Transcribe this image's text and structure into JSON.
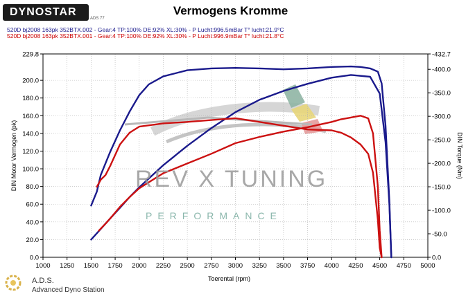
{
  "header": {
    "logo_text": "DYNOSTAR",
    "logo_sub": "ADS 77",
    "title": "Vermogens Kromme"
  },
  "runs": {
    "blue": "520D bj2008 163pk 352BTX.002 - Gear:4 TP:100% DE:92% XL:30%   - P Lucht:996.5mBar T° lucht:21.9°C",
    "red": "520D bj2008 163pk 352BTX.001 - Gear:4 TP:100% DE:92% XL:30%   - P Lucht:996.9mBar T° lucht:21.8°C"
  },
  "watermark": {
    "main": "REV X TUNING",
    "sub": "PERFORMANCE"
  },
  "footer": {
    "brand": "A.D.S.",
    "subtitle": "Advanced Dyno Station"
  },
  "colors": {
    "blue": "#1a1a8c",
    "red": "#cc1111",
    "grid": "#b0b0b0"
  },
  "chart_data": {
    "type": "line",
    "title": "Vermogens Kromme",
    "xlabel": "Toerental (rpm)",
    "ylabel": "DIN Motor Vermogen (pk)",
    "y2label": "DIN Torque (Nm)",
    "xlim": [
      1000,
      5000
    ],
    "ylim": [
      0.0,
      229.8
    ],
    "y2lim": [
      0.0,
      -432.7
    ],
    "x_ticks": [
      "1000",
      "1250",
      "1500",
      "1750",
      "2000",
      "2250",
      "2500",
      "2750",
      "3000",
      "3250",
      "3500",
      "3750",
      "4000",
      "4250",
      "4500",
      "4750",
      "5000"
    ],
    "y_ticks": [
      "0.0",
      "20.0",
      "40.0",
      "60.0",
      "80.0",
      "100.0",
      "120.0",
      "140.0",
      "160.0",
      "180.0",
      "200.0",
      "229.8"
    ],
    "y2_ticks": [
      "0.0",
      "-50.0",
      "-100.0",
      "-150.0",
      "-200.0",
      "-250.0",
      "-300.0",
      "-350.0",
      "-400.0",
      "-432.7"
    ],
    "grid": true,
    "series": [
      {
        "axis": "right",
        "color": "blue",
        "x": [
          1500,
          1560,
          1600,
          1700,
          1800,
          1900,
          2000,
          2100,
          2250,
          2500,
          2750,
          3000,
          3250,
          3500,
          3750,
          4000,
          4200,
          4300,
          4400,
          4480,
          4520,
          4560,
          4600,
          4620
        ],
        "y": [
          110,
          140,
          175,
          225,
          270,
          310,
          345,
          368,
          385,
          398,
          402,
          403,
          402,
          400,
          402,
          405,
          406,
          405,
          402,
          395,
          370,
          280,
          120,
          0
        ]
      },
      {
        "axis": "left",
        "color": "blue",
        "x": [
          1500,
          1600,
          1700,
          1800,
          1900,
          2000,
          2250,
          2500,
          2750,
          3000,
          3250,
          3500,
          3750,
          4000,
          4200,
          4400,
          4500,
          4560,
          4600,
          4620
        ],
        "y": [
          20,
          32,
          44,
          56,
          68,
          79,
          104,
          126,
          146,
          164,
          178,
          188,
          196,
          203,
          206,
          204,
          185,
          130,
          60,
          0
        ]
      },
      {
        "axis": "right",
        "color": "red",
        "x": [
          1560,
          1600,
          1650,
          1700,
          1800,
          1900,
          2000,
          2250,
          2500,
          2750,
          3000,
          3250,
          3500,
          3750,
          4000,
          4100,
          4200,
          4300,
          4380,
          4430,
          4480,
          4500,
          4520
        ],
        "y": [
          150,
          165,
          175,
          195,
          240,
          265,
          278,
          285,
          288,
          292,
          296,
          288,
          280,
          272,
          270,
          265,
          255,
          240,
          220,
          180,
          80,
          20,
          0
        ]
      },
      {
        "axis": "left",
        "color": "red",
        "x": [
          1580,
          1650,
          1700,
          1800,
          1900,
          2000,
          2250,
          2500,
          2750,
          3000,
          3250,
          3500,
          3750,
          4000,
          4100,
          4200,
          4300,
          4380,
          4430,
          4480,
          4500,
          4520
        ],
        "y": [
          30,
          38,
          44,
          57,
          68,
          78,
          95,
          106,
          117,
          129,
          136,
          142,
          147,
          153,
          156,
          158,
          160,
          157,
          140,
          80,
          30,
          0
        ]
      }
    ]
  }
}
